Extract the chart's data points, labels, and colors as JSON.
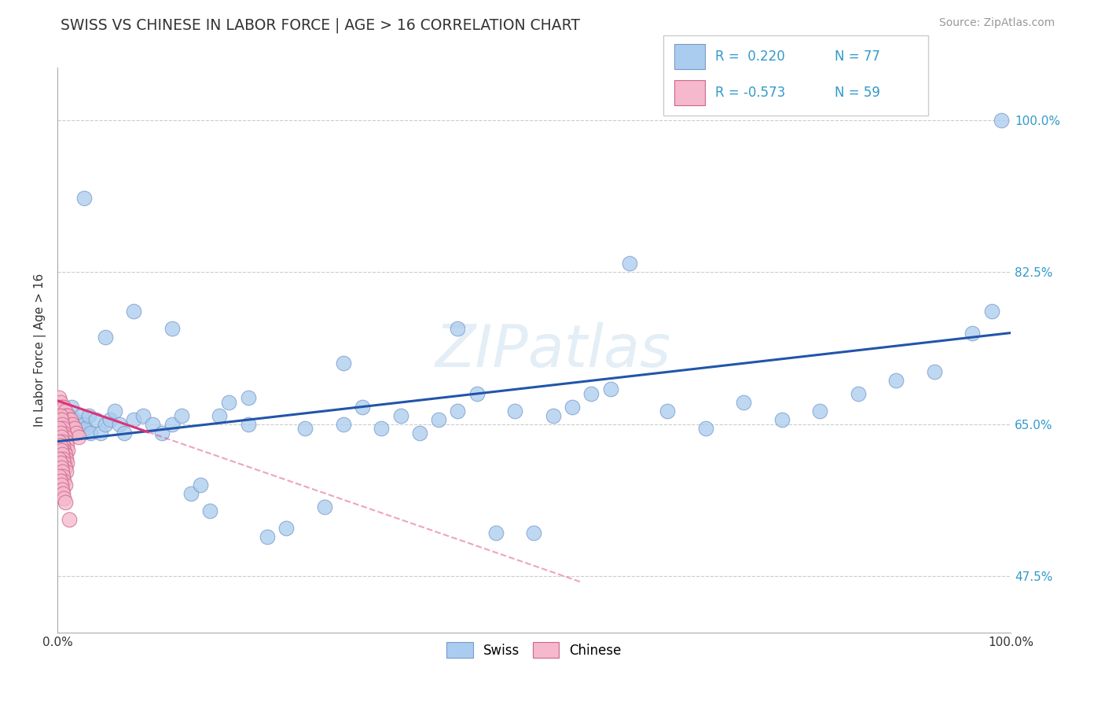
{
  "title": "SWISS VS CHINESE IN LABOR FORCE | AGE > 16 CORRELATION CHART",
  "source_text": "Source: ZipAtlas.com",
  "ylabel": "In Labor Force | Age > 16",
  "xlim": [
    0.0,
    1.0
  ],
  "ylim": [
    0.41,
    1.06
  ],
  "background_color": "#ffffff",
  "grid_color": "#cccccc",
  "swiss_color": "#aaccee",
  "swiss_edge_color": "#7799cc",
  "chinese_color": "#f5b8cc",
  "chinese_edge_color": "#cc6688",
  "swiss_line_color": "#2255aa",
  "chinese_line_color": "#dd3377",
  "watermark_text": "ZIPatlas",
  "ytick_positions": [
    0.475,
    0.65,
    0.825,
    1.0
  ],
  "ytick_labels": [
    "47.5%",
    "65.0%",
    "82.5%",
    "100.0%"
  ],
  "legend_r_swiss": "R =  0.220",
  "legend_n_swiss": "N = 77",
  "legend_r_chinese": "R = -0.573",
  "legend_n_chinese": "N = 59",
  "swiss_x": [
    0.005,
    0.006,
    0.007,
    0.008,
    0.009,
    0.01,
    0.011,
    0.012,
    0.013,
    0.014,
    0.015,
    0.016,
    0.018,
    0.02,
    0.022,
    0.025,
    0.028,
    0.03,
    0.033,
    0.035,
    0.04,
    0.045,
    0.05,
    0.055,
    0.06,
    0.065,
    0.07,
    0.08,
    0.09,
    0.1,
    0.11,
    0.12,
    0.13,
    0.14,
    0.15,
    0.16,
    0.17,
    0.18,
    0.2,
    0.22,
    0.24,
    0.26,
    0.28,
    0.3,
    0.32,
    0.34,
    0.36,
    0.38,
    0.4,
    0.42,
    0.44,
    0.46,
    0.48,
    0.5,
    0.52,
    0.54,
    0.56,
    0.58,
    0.6,
    0.64,
    0.68,
    0.72,
    0.76,
    0.8,
    0.84,
    0.88,
    0.92,
    0.96,
    0.98,
    0.99,
    0.028,
    0.05,
    0.08,
    0.12,
    0.2,
    0.3,
    0.42
  ],
  "swiss_y": [
    0.67,
    0.655,
    0.66,
    0.65,
    0.66,
    0.655,
    0.645,
    0.66,
    0.65,
    0.655,
    0.67,
    0.645,
    0.655,
    0.64,
    0.65,
    0.66,
    0.65,
    0.645,
    0.66,
    0.64,
    0.655,
    0.64,
    0.65,
    0.655,
    0.665,
    0.65,
    0.64,
    0.655,
    0.66,
    0.65,
    0.64,
    0.65,
    0.66,
    0.57,
    0.58,
    0.55,
    0.66,
    0.675,
    0.65,
    0.52,
    0.53,
    0.645,
    0.555,
    0.65,
    0.67,
    0.645,
    0.66,
    0.64,
    0.655,
    0.665,
    0.685,
    0.525,
    0.665,
    0.525,
    0.66,
    0.67,
    0.685,
    0.69,
    0.835,
    0.665,
    0.645,
    0.675,
    0.655,
    0.665,
    0.685,
    0.7,
    0.71,
    0.755,
    0.78,
    1.0,
    0.91,
    0.75,
    0.78,
    0.76,
    0.68,
    0.72,
    0.76
  ],
  "chinese_x": [
    0.002,
    0.003,
    0.004,
    0.005,
    0.006,
    0.007,
    0.008,
    0.009,
    0.01,
    0.011,
    0.012,
    0.013,
    0.014,
    0.015,
    0.016,
    0.018,
    0.02,
    0.022,
    0.003,
    0.004,
    0.005,
    0.006,
    0.007,
    0.008,
    0.009,
    0.01,
    0.011,
    0.002,
    0.003,
    0.004,
    0.005,
    0.006,
    0.007,
    0.008,
    0.009,
    0.01,
    0.002,
    0.003,
    0.004,
    0.005,
    0.006,
    0.007,
    0.008,
    0.009,
    0.002,
    0.003,
    0.004,
    0.005,
    0.006,
    0.007,
    0.008,
    0.002,
    0.003,
    0.004,
    0.005,
    0.006,
    0.007,
    0.008,
    0.012
  ],
  "chinese_y": [
    0.68,
    0.675,
    0.67,
    0.665,
    0.66,
    0.67,
    0.665,
    0.66,
    0.655,
    0.66,
    0.655,
    0.65,
    0.655,
    0.645,
    0.65,
    0.645,
    0.64,
    0.635,
    0.66,
    0.655,
    0.65,
    0.645,
    0.64,
    0.635,
    0.63,
    0.625,
    0.62,
    0.645,
    0.64,
    0.635,
    0.63,
    0.625,
    0.62,
    0.615,
    0.61,
    0.605,
    0.63,
    0.625,
    0.62,
    0.615,
    0.61,
    0.605,
    0.6,
    0.595,
    0.61,
    0.605,
    0.6,
    0.595,
    0.59,
    0.585,
    0.58,
    0.59,
    0.585,
    0.58,
    0.575,
    0.57,
    0.565,
    0.56,
    0.54
  ]
}
